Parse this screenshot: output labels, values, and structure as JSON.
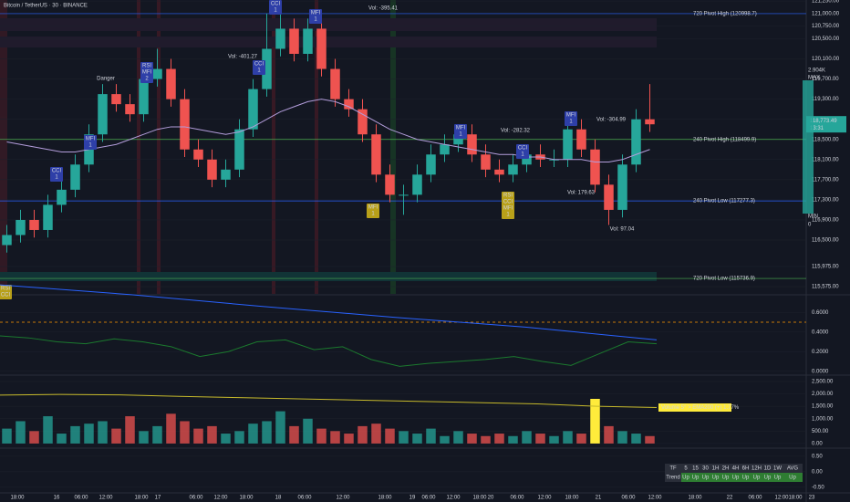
{
  "header": {
    "title": "Bitcoin / TetherUS · 30 · BINANCE"
  },
  "x_axis": {
    "labels": [
      "18:00",
      "16",
      "06:00",
      "12:00",
      "18:00",
      "17",
      "06:00",
      "12:00",
      "18:00",
      "18",
      "06:00",
      "12:00",
      "18:00",
      "19",
      "06:00",
      "12:00",
      "18:00",
      "20",
      "06:00",
      "12:00",
      "18:00",
      "21",
      "06:00",
      "12:00",
      "18:00",
      "22",
      "06:00",
      "12:00",
      "18:00",
      "23"
    ]
  },
  "chart_data": [
    {
      "type": "candlestick",
      "ylim": [
        115430,
        121270
      ],
      "yticks": [
        {
          "value": 121250,
          "label": "121,250.00"
        },
        {
          "value": 121000,
          "label": "121,000.00"
        },
        {
          "value": 120750,
          "label": "120,750.00"
        },
        {
          "value": 120500,
          "label": "120,500.00"
        },
        {
          "value": 120100,
          "label": "120,100.00"
        },
        {
          "value": 119700,
          "label": "119,700.00"
        },
        {
          "value": 119300,
          "label": "119,300.00"
        },
        {
          "value": 118900,
          "label": "118,900.00"
        },
        {
          "value": 118500,
          "label": "118,500.00"
        },
        {
          "value": 118100,
          "label": "118,100.00"
        },
        {
          "value": 117700,
          "label": "117,700.00"
        },
        {
          "value": 117300,
          "label": "117,300.00"
        },
        {
          "value": 116900,
          "label": "116,900.00"
        },
        {
          "value": 116500,
          "label": "116,500.00"
        },
        {
          "value": 115975,
          "label": "115,975.00"
        },
        {
          "value": 115575,
          "label": "115,575.00"
        }
      ],
      "up_color": "#26a69a",
      "down_color": "#ef5350",
      "open": [
        116400,
        116600,
        116900,
        116700,
        117200,
        117500,
        118000,
        118600,
        119400,
        119200,
        119000,
        119700,
        119900,
        119300,
        118300,
        118100,
        117700,
        117900,
        118700,
        119500,
        120300,
        120700,
        120200,
        120700,
        119900,
        119300,
        119100,
        118600,
        117800,
        117400,
        117400,
        117800,
        118200,
        118400,
        118600,
        118200,
        117900,
        117800,
        118000,
        118200,
        118100,
        118100,
        118700,
        118300,
        117600,
        117100,
        118000,
        118900
      ],
      "high": [
        116800,
        117100,
        117100,
        117400,
        117700,
        118200,
        118800,
        119600,
        119600,
        119400,
        119900,
        120300,
        120100,
        119500,
        118500,
        118300,
        118100,
        118900,
        119700,
        121000,
        121000,
        120900,
        120900,
        120900,
        120100,
        119500,
        119300,
        118800,
        118000,
        117600,
        118000,
        118400,
        118600,
        118800,
        118800,
        118400,
        118100,
        118200,
        118400,
        118400,
        118300,
        118900,
        118900,
        118500,
        117800,
        118200,
        119100,
        119600
      ],
      "low": [
        116250,
        116450,
        116550,
        116550,
        117050,
        117350,
        117850,
        118450,
        119050,
        118850,
        118850,
        119550,
        119150,
        118150,
        117950,
        117550,
        117550,
        117750,
        118550,
        119350,
        120150,
        120050,
        120050,
        119750,
        119150,
        118950,
        118450,
        117650,
        117250,
        117000,
        117250,
        117650,
        118050,
        118250,
        118050,
        117750,
        117650,
        117650,
        117850,
        117950,
        117950,
        117950,
        118150,
        117450,
        116800,
        116950,
        117850,
        118650
      ],
      "close": [
        116600,
        116900,
        116700,
        117200,
        117500,
        118000,
        118600,
        119400,
        119200,
        119000,
        119700,
        119900,
        119300,
        118300,
        118100,
        117700,
        117900,
        118700,
        119500,
        120300,
        120700,
        120200,
        120700,
        119900,
        119300,
        119100,
        118600,
        117800,
        117400,
        117400,
        117800,
        118200,
        118400,
        118600,
        118200,
        117900,
        117800,
        118000,
        118200,
        118100,
        118100,
        118700,
        118300,
        117600,
        117100,
        118000,
        118900,
        118800
      ],
      "ma": {
        "color": "#b39ddb",
        "values": [
          118450,
          118400,
          118350,
          118300,
          118250,
          118250,
          118300,
          118350,
          118400,
          118500,
          118600,
          118700,
          118750,
          118750,
          118700,
          118650,
          118600,
          118650,
          118750,
          118900,
          119050,
          119150,
          119250,
          119300,
          119250,
          119150,
          119000,
          118850,
          118700,
          118600,
          118500,
          118450,
          118400,
          118350,
          118300,
          118250,
          118200,
          118200,
          118150,
          118150,
          118100,
          118100,
          118100,
          118050,
          118050,
          118100,
          118200,
          118300
        ]
      },
      "price_label": "118,773.49",
      "countdown": "13:31",
      "pivots": [
        {
          "value": 120998.7,
          "label": "720 Pivot High (120998.7)"
        },
        {
          "value": 118499.9,
          "label": "240 Pivot High (118499.9)"
        },
        {
          "value": 117277.3,
          "label": "240 Pivot Low (117277.3)"
        },
        {
          "value": 115736.9,
          "label": "720 Pivot Low (115736.9)"
        }
      ],
      "badges": [
        {
          "lines": [
            "CCI",
            "1"
          ],
          "color": "#2e3fa8"
        },
        {
          "lines": [
            "MFI",
            "1"
          ],
          "color": "#2e3fa8"
        },
        {
          "lines": [
            "RSI",
            "MFI",
            "2"
          ],
          "color": "#2e3fa8"
        },
        {
          "lines": [
            "CCI",
            "1"
          ],
          "color": "#2e3fa8"
        },
        {
          "lines": [
            "CCI",
            "1"
          ],
          "color": "#2e3fa8"
        },
        {
          "lines": [
            "MFI",
            "1"
          ],
          "color": "#2e3fa8"
        },
        {
          "lines": [
            "MFI",
            "1"
          ],
          "color": "#2e3fa8"
        },
        {
          "lines": [
            "CCI",
            "1"
          ],
          "color": "#2e3fa8"
        },
        {
          "lines": [
            "MFI",
            "1"
          ],
          "color": "#2e3fa8"
        },
        {
          "lines": [
            "MFI",
            "1"
          ],
          "color": "#b8a019"
        },
        {
          "lines": [
            "RSI",
            "CCI",
            "MFI",
            "1"
          ],
          "color": "#b8a019"
        },
        {
          "lines": [
            "RSI",
            "CCI"
          ],
          "color": "#b8a019"
        }
      ],
      "notes": [
        "Danger",
        "Vol: -401.27",
        "Vol: -395.41",
        "Vol: -282.32",
        "Vol: -304.99",
        "Vol: 179.63",
        "Vol: 97.04"
      ],
      "gauge": [
        "2.904K",
        "MAX",
        "MIN",
        "0"
      ]
    },
    {
      "type": "line",
      "ylim": [
        -0.03,
        0.76
      ],
      "yticks": [
        {
          "value": 0.6,
          "label": "0.6000"
        },
        {
          "value": 0.4,
          "label": "0.4000"
        },
        {
          "value": 0.2,
          "label": "0.2000"
        },
        {
          "value": 0,
          "label": "0.0000"
        }
      ],
      "reference": 0.5,
      "reference_color": "#ff9800",
      "series": [
        {
          "color": "#1b7a2e",
          "values": [
            0.36,
            0.34,
            0.3,
            0.28,
            0.33,
            0.3,
            0.25,
            0.15,
            0.2,
            0.3,
            0.32,
            0.22,
            0.25,
            0.12,
            0.05,
            0.08,
            0.1,
            0.12,
            0.15,
            0.1,
            0.06,
            0.18,
            0.3,
            0.28
          ]
        },
        {
          "color": "#2962ff",
          "values": [
            0.88,
            0.78,
            0.66,
            0.55,
            0.45,
            0.32
          ]
        }
      ]
    },
    {
      "type": "bar",
      "ylim": [
        -150,
        2720
      ],
      "yticks": [
        {
          "value": 2500,
          "label": "2,500.00"
        },
        {
          "value": 2000,
          "label": "2,000.00"
        },
        {
          "value": 1500,
          "label": "1,500.00"
        },
        {
          "value": 1000,
          "label": "1,000.00"
        },
        {
          "value": 500,
          "label": "500.00"
        },
        {
          "value": 0,
          "label": "0.00"
        }
      ],
      "values": [
        600,
        900,
        500,
        1100,
        400,
        700,
        800,
        900,
        600,
        1100,
        500,
        700,
        1200,
        900,
        600,
        700,
        400,
        500,
        800,
        900,
        1300,
        700,
        1000,
        600,
        500,
        400,
        700,
        800,
        600,
        500,
        400,
        600,
        300,
        500,
        400,
        300,
        400,
        300,
        500,
        400,
        300,
        500,
        400,
        1800,
        700,
        500,
        400,
        300
      ],
      "highlight": 43,
      "highlight_color": "#ffeb3b",
      "ema": {
        "color": "#c6b92b",
        "values": [
          1950,
          1980,
          1960,
          1900,
          1850,
          1800,
          1750,
          1700,
          1650,
          1600,
          1500,
          1450
        ]
      },
      "callout": "Volume 5° > EMA200 (+) 1.77%"
    },
    {
      "type": "table",
      "ylim": [
        -0.68,
        0.76
      ],
      "yticks": [
        {
          "value": 0.5,
          "label": "0.50"
        },
        {
          "value": 0,
          "label": "0.00"
        },
        {
          "value": -0.5,
          "label": "-0.50"
        }
      ],
      "rows": [
        [
          "TF",
          "5",
          "15",
          "30",
          "1H",
          "2H",
          "4H",
          "6H",
          "12H",
          "1D",
          "1W",
          "AVG"
        ],
        [
          "Trend",
          "Up",
          "Up",
          "Up",
          "Up",
          "Up",
          "Up",
          "Up",
          "Up",
          "Up",
          "Up",
          "Up"
        ]
      ]
    }
  ]
}
